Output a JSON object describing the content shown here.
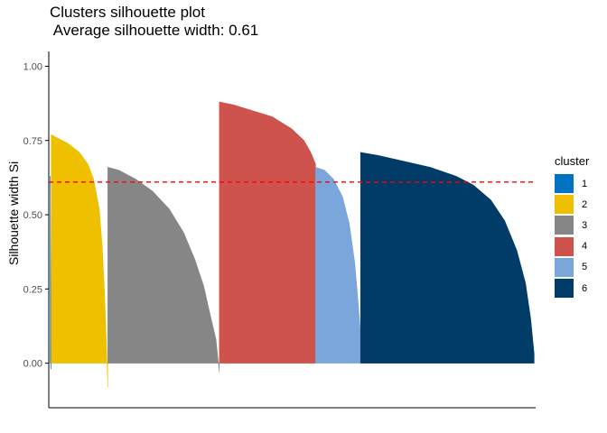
{
  "chart_data": {
    "type": "bar",
    "title": "Clusters silhouette plot",
    "subtitle": " Average silhouette width: 0.61",
    "xlabel": "",
    "ylabel": "Silhouette width Si",
    "ylim": [
      -0.15,
      1.05
    ],
    "yticks": [
      "0.00",
      "0.25",
      "0.50",
      "0.75",
      "1.00"
    ],
    "average_silhouette_width": 0.61,
    "legend_title": "cluster",
    "legend_position": "right",
    "grid": false,
    "series": [
      {
        "name": "1",
        "color": "#0073C2",
        "n": 1,
        "values": [
          [
            0,
            0.63
          ],
          [
            1,
            -0.02
          ]
        ]
      },
      {
        "name": "2",
        "color": "#EFC000",
        "n": 63,
        "values": [
          [
            0,
            0.77
          ],
          [
            0.1,
            0.76
          ],
          [
            0.3,
            0.74
          ],
          [
            0.5,
            0.71
          ],
          [
            0.65,
            0.67
          ],
          [
            0.75,
            0.62
          ],
          [
            0.85,
            0.52
          ],
          [
            0.9,
            0.4
          ],
          [
            0.94,
            0.25
          ],
          [
            0.97,
            0.1
          ],
          [
            1,
            -0.08
          ]
        ]
      },
      {
        "name": "3",
        "color": "#868686",
        "n": 124,
        "values": [
          [
            0,
            0.66
          ],
          [
            0.1,
            0.65
          ],
          [
            0.25,
            0.62
          ],
          [
            0.4,
            0.58
          ],
          [
            0.55,
            0.52
          ],
          [
            0.68,
            0.44
          ],
          [
            0.78,
            0.35
          ],
          [
            0.86,
            0.26
          ],
          [
            0.92,
            0.16
          ],
          [
            0.97,
            0.08
          ],
          [
            1,
            -0.03
          ]
        ]
      },
      {
        "name": "4",
        "color": "#CD534C",
        "n": 107,
        "values": [
          [
            0,
            0.88
          ],
          [
            0.15,
            0.87
          ],
          [
            0.35,
            0.85
          ],
          [
            0.55,
            0.83
          ],
          [
            0.75,
            0.79
          ],
          [
            0.88,
            0.75
          ],
          [
            0.95,
            0.71
          ],
          [
            1,
            0.67
          ]
        ]
      },
      {
        "name": "5",
        "color": "#7AA6DC",
        "n": 50,
        "values": [
          [
            0,
            0.66
          ],
          [
            0.2,
            0.65
          ],
          [
            0.4,
            0.62
          ],
          [
            0.6,
            0.56
          ],
          [
            0.75,
            0.47
          ],
          [
            0.87,
            0.34
          ],
          [
            0.95,
            0.2
          ],
          [
            1,
            0.1
          ]
        ]
      },
      {
        "name": "6",
        "color": "#003C67",
        "n": 193,
        "values": [
          [
            0,
            0.71
          ],
          [
            0.1,
            0.7
          ],
          [
            0.25,
            0.68
          ],
          [
            0.4,
            0.66
          ],
          [
            0.55,
            0.63
          ],
          [
            0.65,
            0.6
          ],
          [
            0.75,
            0.55
          ],
          [
            0.83,
            0.48
          ],
          [
            0.9,
            0.38
          ],
          [
            0.95,
            0.27
          ],
          [
            0.98,
            0.15
          ],
          [
            1,
            0.03
          ]
        ]
      }
    ]
  }
}
